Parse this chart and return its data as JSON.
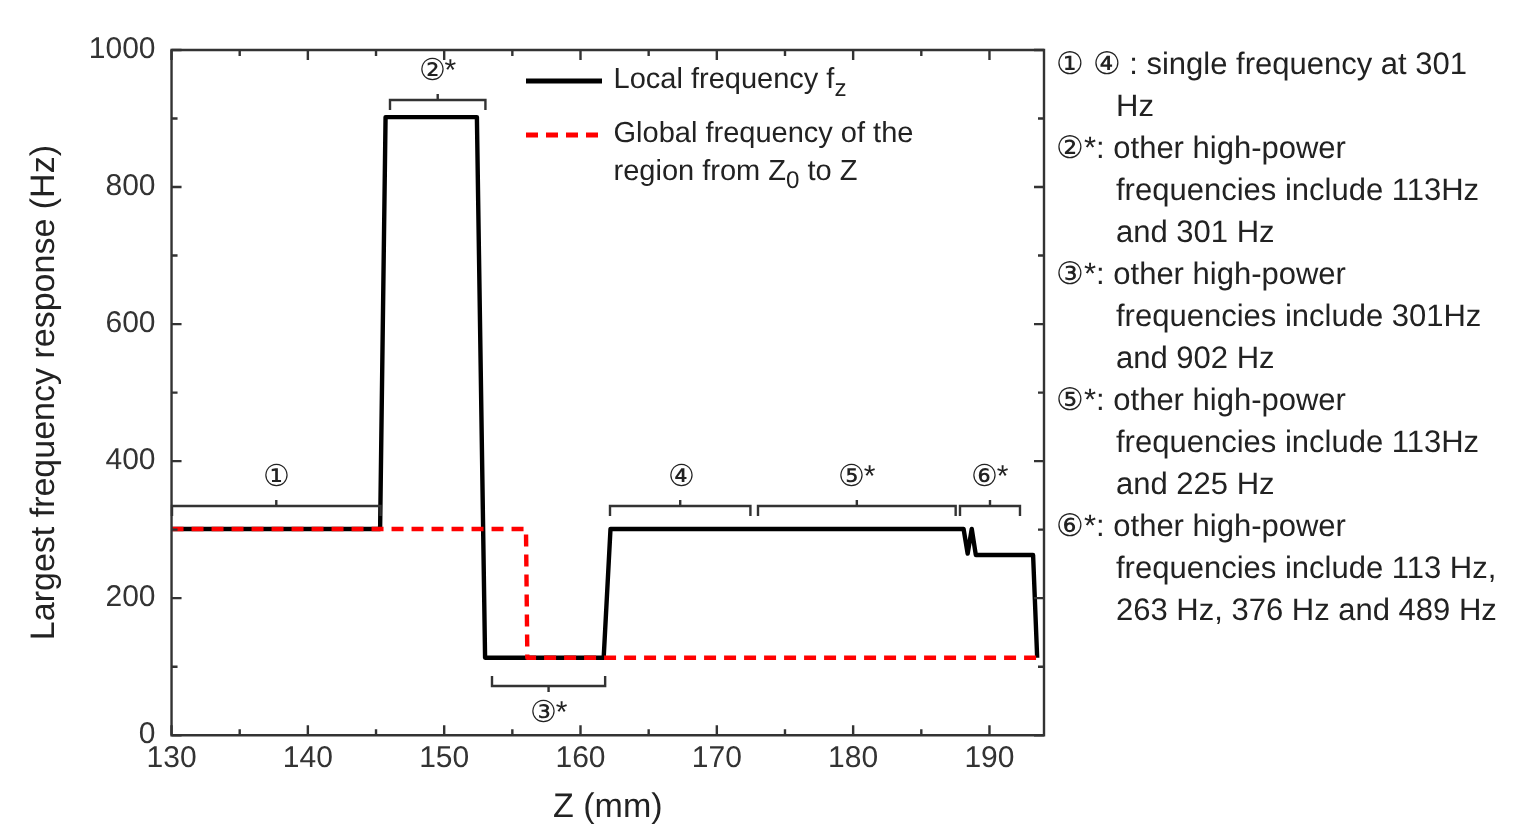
{
  "chart_data": {
    "type": "line",
    "xlabel": "Z (mm)",
    "ylabel": "Largest frequency response (Hz)",
    "xlim": [
      130,
      194
    ],
    "ylim": [
      0,
      1000
    ],
    "xticks": [
      130,
      {
        "value": 135,
        "label": null
      },
      140,
      {
        "value": 145,
        "label": null
      },
      150,
      {
        "value": 155,
        "label": null
      },
      160,
      {
        "value": 165,
        "label": null
      },
      170,
      {
        "value": 175,
        "label": null
      },
      180,
      {
        "value": 185,
        "label": null
      },
      190
    ],
    "yticks": [
      0,
      {
        "value": 100,
        "label": null
      },
      200,
      {
        "value": 300,
        "label": null
      },
      400,
      {
        "value": 500,
        "label": null
      },
      600,
      {
        "value": 700,
        "label": null
      },
      800,
      {
        "value": 900,
        "label": null
      },
      1000
    ],
    "grid": false,
    "legend": "top right",
    "marker": "none",
    "series": [
      {
        "name": "Local frequency f$_{z}$",
        "color": "#000000",
        "line_style": "solid",
        "x": [
          130,
          145.3,
          145.7,
          152.4,
          153.0,
          161.7,
          162.2,
          188.1,
          188.4,
          188.7,
          189.0,
          193.2,
          193.5
        ],
        "values": [
          301,
          301,
          902,
          902,
          113,
          113,
          301,
          301,
          265,
          301,
          263,
          263,
          113
        ]
      },
      {
        "name": "Global frequency of the region from Z$_{0}$ to Z",
        "color": "#ff0000",
        "line_style": "dashed",
        "x": [
          130,
          156.0,
          156.1,
          193.5
        ],
        "values": [
          301,
          301,
          113,
          113
        ]
      }
    ],
    "annotations": [
      "①",
      "②*",
      "③*",
      "④",
      "⑤*",
      "⑥*",
      "① ④ : single frequency at 301 Hz",
      "②*: other high-power frequencies include 113Hz and 301 Hz",
      "③*: other high-power frequencies include 301Hz and 902 Hz",
      "⑤*: other high-power frequencies include 113Hz and 225 Hz",
      "⑥*: other high-power frequencies include 113 Hz, 263 Hz, 376 Hz and 489 Hz"
    ]
  }
}
